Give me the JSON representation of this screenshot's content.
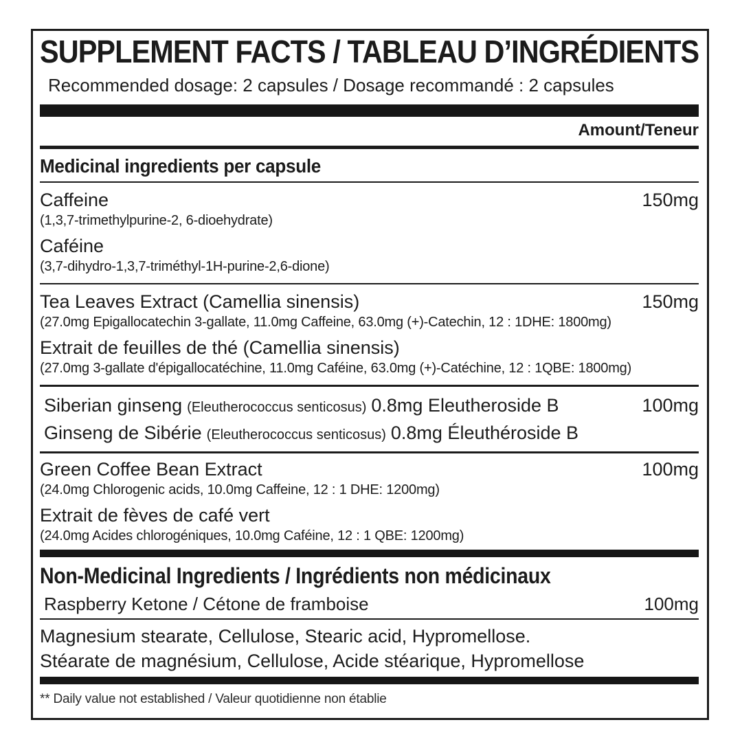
{
  "title": "SUPPLEMENT FACTS / TABLEAU D’INGRÉDIENTS",
  "dosage": "Recommended dosage: 2 capsules / Dosage recommandé : 2 capsules",
  "amount_header": "Amount/Teneur",
  "medicinal": {
    "heading": "Medicinal ingredients per capsule",
    "rows": [
      {
        "en_name": "Caffeine",
        "amount": "150mg",
        "en_sub": "(1,3,7-trimethylpurine-2, 6-dioehydrate)",
        "fr_name": "Caféine",
        "fr_sub": "(3,7-dihydro-1,3,7-triméthyl-1H-purine-2,6-dione)"
      },
      {
        "en_name": "Tea Leaves Extract (Camellia sinensis)",
        "amount": "150mg",
        "en_sub": "(27.0mg Epigallocatechin 3-gallate, 11.0mg Caffeine, 63.0mg (+)-Catechin, 12 : 1DHE: 1800mg)",
        "fr_name": "Extrait de feuilles de thé (Camellia sinensis)",
        "fr_sub": "(27.0mg 3-gallate d'épigallocatéchine, 11.0mg Caféine, 63.0mg (+)-Catéchine, 12 : 1QBE: 1800mg)"
      },
      {
        "en_pre": "Siberian ginseng",
        "latin": "(Eleutherococcus senticosus)",
        "en_post": "0.8mg Eleutheroside B",
        "amount": "100mg",
        "fr_pre": "Ginseng de Sibérie",
        "fr_post": "0.8mg Éleuthéroside B"
      },
      {
        "en_name": "Green Coffee Bean Extract",
        "amount": "100mg",
        "en_sub": "(24.0mg Chlorogenic acids, 10.0mg Caffeine, 12 : 1 DHE: 1200mg)",
        "fr_name": "Extrait de fèves de café vert",
        "fr_sub": "(24.0mg Acides chlorogéniques, 10.0mg Caféine, 12 : 1 QBE: 1200mg)"
      }
    ]
  },
  "non_medicinal": {
    "heading": "Non-Medicinal Ingredients / Ingrédients non médicinaux",
    "raspberry": {
      "name": "Raspberry Ketone / Cétone de framboise",
      "amount": "100mg"
    },
    "other_en": "Magnesium stearate, Cellulose, Stearic acid, Hypromellose.",
    "other_fr": "Stéarate de magnésium, Cellulose, Acide stéarique, Hypromellose"
  },
  "footnote": "** Daily value not established / Valeur quotidienne non établie",
  "colors": {
    "ink": "#1b1b1b",
    "background": "#ffffff"
  }
}
